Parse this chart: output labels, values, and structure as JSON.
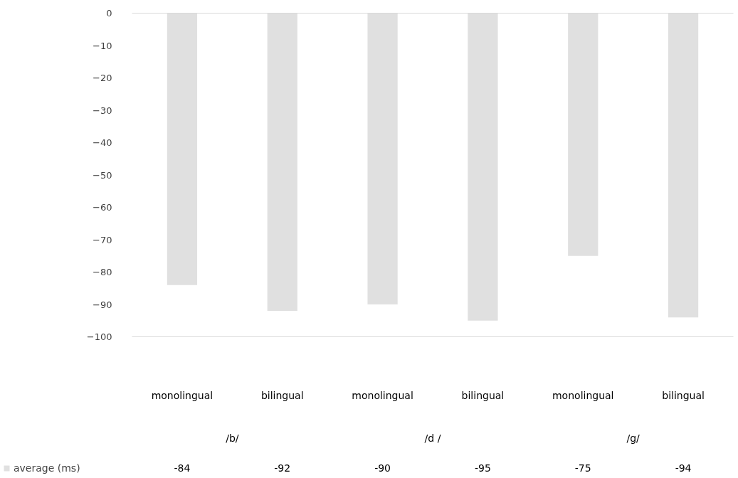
{
  "chart_data": {
    "type": "bar",
    "categories": [
      "monolingual",
      "bilingual",
      "monolingual",
      "bilingual",
      "monolingual",
      "bilingual"
    ],
    "annotations": [
      "/b/",
      "/d /",
      "/g/"
    ],
    "series": [
      {
        "name": "average (ms)",
        "color": "#e0e0e0",
        "values": [
          -84,
          -92,
          -90,
          -95,
          -75,
          -94
        ]
      }
    ],
    "ylim": [
      -100,
      0
    ],
    "yticks": [
      0,
      -10,
      -20,
      -30,
      -40,
      -50,
      -60,
      -70,
      -80,
      -90,
      -100
    ],
    "grid": false,
    "data_labels": true,
    "legend": "bottom"
  }
}
